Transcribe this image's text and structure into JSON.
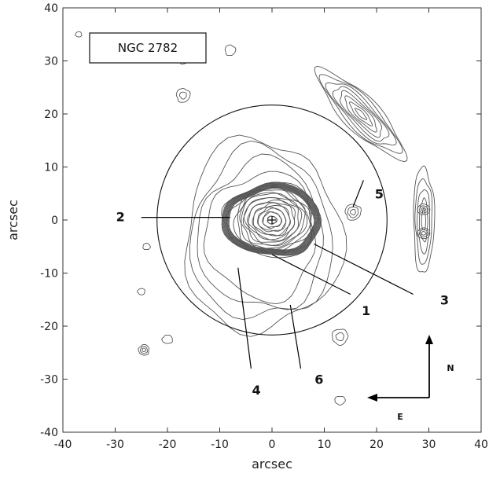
{
  "chart_data": {
    "type": "contour",
    "title": "NGC 2782",
    "xlabel": "arcsec",
    "ylabel": "arcsec",
    "xlim": [
      -40,
      40
    ],
    "ylim": [
      -40,
      40
    ],
    "xticks": [
      -40,
      -30,
      -20,
      -10,
      0,
      10,
      20,
      30,
      40
    ],
    "yticks": [
      -40,
      -30,
      -20,
      -10,
      0,
      10,
      20,
      30,
      40
    ],
    "grid": false,
    "circle": {
      "cx": 0,
      "cy": 0,
      "r": 22
    },
    "center_marker": {
      "x": 0,
      "y": 0,
      "symbol": "+"
    },
    "annotations": [
      {
        "label": "1",
        "text_at": [
          18,
          -17
        ],
        "line_from": [
          15,
          -14
        ],
        "line_to": [
          0,
          -6.5
        ]
      },
      {
        "label": "2",
        "text_at": [
          -29,
          0.7
        ],
        "line_from": [
          -25,
          0.5
        ],
        "line_to": [
          -8,
          0.5
        ]
      },
      {
        "label": "3",
        "text_at": [
          33,
          -15
        ],
        "line_from": [
          27,
          -14
        ],
        "line_to": [
          8,
          -4.5
        ]
      },
      {
        "label": "4",
        "text_at": [
          -3,
          -32
        ],
        "line_from": [
          -4,
          -28
        ],
        "line_to": [
          -6.5,
          -9
        ]
      },
      {
        "label": "5",
        "text_at": [
          20.5,
          5
        ],
        "line_from": [
          17.5,
          7.5
        ],
        "line_to": [
          15.5,
          2.5
        ]
      },
      {
        "label": "6",
        "text_at": [
          9,
          -30
        ],
        "line_from": [
          5.5,
          -28
        ],
        "line_to": [
          3.5,
          -16
        ]
      }
    ],
    "compass": {
      "north": "N",
      "east": "E"
    },
    "sources": [
      {
        "x": 0,
        "y": 0,
        "rx": 7,
        "ry": 6,
        "n": 8
      },
      {
        "x": 0,
        "y": 0,
        "rx": 9,
        "ry": 7,
        "n": 10
      },
      {
        "x": 29,
        "y": 0,
        "rx": 2,
        "ry": 10,
        "n": 5
      },
      {
        "x": 15.5,
        "y": 1.5,
        "rx": 1.5,
        "ry": 1.5,
        "n": 3
      },
      {
        "x": -17,
        "y": 23.5,
        "rx": 1.3,
        "ry": 1.3,
        "n": 2
      },
      {
        "x": -8,
        "y": 32,
        "rx": 1,
        "ry": 1,
        "n": 1
      },
      {
        "x": -24.5,
        "y": -24.5,
        "rx": 1,
        "ry": 1,
        "n": 3
      },
      {
        "x": -20,
        "y": -22.5,
        "rx": 1,
        "ry": 0.8,
        "n": 1
      },
      {
        "x": 13,
        "y": -22,
        "rx": 1.5,
        "ry": 1.5,
        "n": 2
      },
      {
        "x": 13,
        "y": -34,
        "rx": 1,
        "ry": 0.8,
        "n": 1
      },
      {
        "x": -17,
        "y": 30,
        "rx": 0.8,
        "ry": 0.6,
        "n": 1
      },
      {
        "x": -24,
        "y": -5,
        "rx": 0.7,
        "ry": 0.6,
        "n": 1
      },
      {
        "x": -37,
        "y": 35,
        "rx": 0.6,
        "ry": 0.5,
        "n": 1
      },
      {
        "x": -25,
        "y": -13.5,
        "rx": 0.7,
        "ry": 0.6,
        "n": 1
      }
    ],
    "tail": {
      "x0": 9,
      "y0": 28,
      "x1": 25,
      "y1": 12,
      "n": 8
    },
    "bars": [
      {
        "x": 29,
        "y": 2,
        "rx": 1.2,
        "ry": 1,
        "n": 3
      },
      {
        "x": 29,
        "y": -2.5,
        "rx": 1.2,
        "ry": 1,
        "n": 3
      }
    ]
  }
}
